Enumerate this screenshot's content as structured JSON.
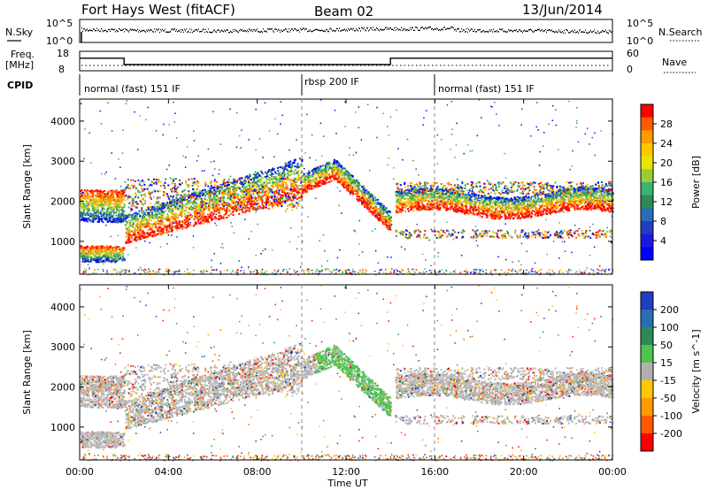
{
  "header": {
    "title": "Fort Hays West (fitACF)",
    "beam": "Beam 02",
    "date": "13/Jun/2014"
  },
  "noise_panel": {
    "left_label": "N.Sky",
    "right_label": "N.Search",
    "left_ticks": [
      "10^5",
      "10^0"
    ],
    "right_ticks": [
      "10^5",
      "10^0"
    ]
  },
  "freq_panel": {
    "left_label": "Freq.",
    "left_unit": "[MHz]",
    "right_label": "Nave",
    "left_ticks": [
      "18",
      "8"
    ],
    "right_ticks": [
      "60",
      "0"
    ]
  },
  "cpid": {
    "label": "CPID",
    "segments": [
      {
        "text": "normal (fast) 151 IF",
        "start_hour": 0,
        "end_hour": 10
      },
      {
        "text": "rbsp 200 IF",
        "start_hour": 10,
        "end_hour": 16
      },
      {
        "text": "normal (fast) 151 IF",
        "start_hour": 16,
        "end_hour": 24
      }
    ]
  },
  "power_scale": {
    "label": "Power [dB]",
    "ticks": [
      "28",
      "24",
      "20",
      "16",
      "12",
      "8",
      "4"
    ],
    "colors": [
      "#ff0000",
      "#ff5a00",
      "#ff9a00",
      "#ffc800",
      "#e6e600",
      "#9acd32",
      "#3cb371",
      "#2e8b57",
      "#2a6db5",
      "#1f3fbf",
      "#1a1adf",
      "#0000ff"
    ]
  },
  "velocity_scale": {
    "label": "Velocity [m s^-1]",
    "ticks": [
      "200",
      "100",
      "50",
      "15",
      "-15",
      "-50",
      "-100",
      "-200"
    ],
    "colors": [
      "#1f3fbf",
      "#2a6db5",
      "#2e8b57",
      "#4fc24f",
      "#b0b0b0",
      "#ffc800",
      "#ff9a00",
      "#ff5a00",
      "#ff0000"
    ]
  },
  "chart_data": {
    "type": "heatmap",
    "x_axis": {
      "label": "Time UT",
      "range_hours": [
        0,
        24
      ],
      "ticks": [
        "00:00",
        "04:00",
        "08:00",
        "12:00",
        "16:00",
        "20:00",
        "00:00"
      ]
    },
    "y_axis": {
      "label": "Slant Range [km]",
      "range_km": [
        180,
        4550
      ],
      "ticks": [
        1000,
        2000,
        3000,
        4000
      ]
    },
    "frequency_mhz": [
      {
        "start_hour": 0,
        "end_hour": 2,
        "value": 15
      },
      {
        "start_hour": 2,
        "end_hour": 14,
        "value": 10.5
      },
      {
        "start_hour": 14,
        "end_hour": 24,
        "value": 15
      }
    ],
    "echo_bands": [
      {
        "name": "early-lower",
        "hours": [
          0,
          2
        ],
        "range_km": [
          500,
          900
        ]
      },
      {
        "name": "early-upper",
        "hours": [
          0,
          2
        ],
        "range_km": [
          1500,
          2300
        ]
      },
      {
        "name": "rising",
        "hours": [
          2,
          10
        ],
        "range_km": [
          1000,
          2400
        ]
      },
      {
        "name": "peak",
        "hours": [
          10,
          12
        ],
        "range_km": [
          2300,
          3000
        ]
      },
      {
        "name": "falling",
        "hours": [
          12,
          14
        ],
        "range_km": [
          1200,
          2300
        ]
      },
      {
        "name": "late",
        "hours": [
          14,
          24
        ],
        "range_km": [
          1500,
          2400
        ]
      }
    ]
  }
}
